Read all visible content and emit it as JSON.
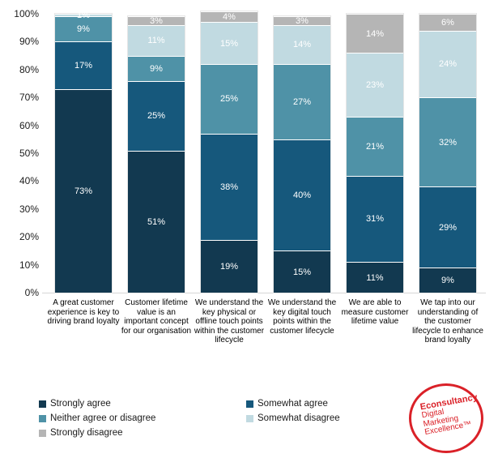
{
  "chart_data": {
    "type": "bar",
    "subtype": "stacked-100-percent",
    "title": "",
    "categories": [
      "A great customer experience is key to driving brand loyalty",
      "Customer lifetime value is an important concept for our organisation",
      "We understand the key physical or offline touch points within the customer lifecycle",
      "We understand the key digital touch points within the customer lifecycle",
      "We are able to measure customer lifetime value",
      "We tap into our understanding of the customer lifecycle to enhance brand loyalty"
    ],
    "series": [
      {
        "name": "Strongly agree",
        "color": "#123950",
        "values": [
          73,
          51,
          19,
          15,
          11,
          9
        ]
      },
      {
        "name": "Somewhat agree",
        "color": "#16587c",
        "values": [
          17,
          25,
          38,
          40,
          31,
          29
        ]
      },
      {
        "name": "Neither agree or disagree",
        "color": "#4f92a7",
        "values": [
          9,
          9,
          25,
          27,
          21,
          32
        ]
      },
      {
        "name": "Somewhat disagree",
        "color": "#c1dae1",
        "values": [
          1,
          11,
          15,
          14,
          23,
          24
        ]
      },
      {
        "name": "Strongly disagree",
        "color": "#b5b5b5",
        "values": [
          0,
          3,
          4,
          3,
          14,
          6
        ]
      }
    ],
    "value_suffix": "%",
    "data_label_color": "#ffffff",
    "y_ticks": [
      "100%",
      "90%",
      "80%",
      "70%",
      "60%",
      "50%",
      "40%",
      "30%",
      "20%",
      "10%",
      "0%"
    ],
    "ylim": [
      0,
      100
    ],
    "grid": false,
    "legend_position": "bottom-left",
    "legend_columns": [
      [
        0,
        2,
        4
      ],
      [
        1,
        3
      ]
    ]
  },
  "logo": {
    "brand": "Econsultancy",
    "line1": "Digital",
    "line2": "Marketing",
    "line3": "Excellence™",
    "color": "#da2128"
  }
}
